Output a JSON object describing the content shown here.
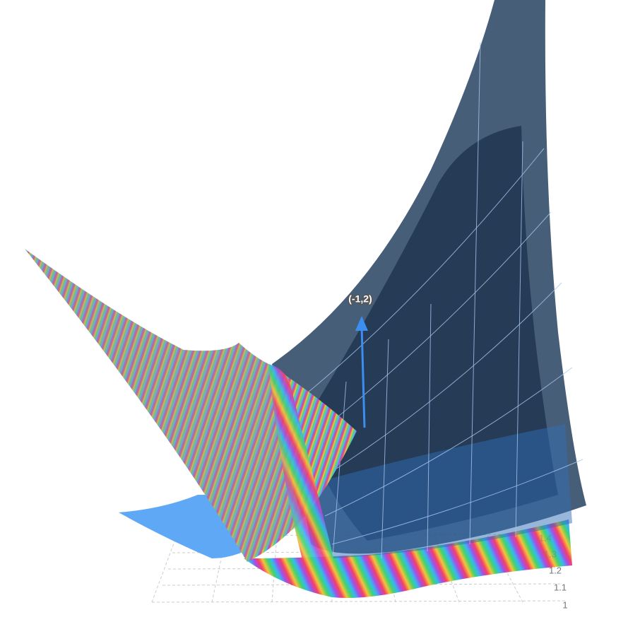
{
  "point_label": "(-1,2)",
  "axis_ticks": [
    "1",
    "1.1",
    "1.2",
    "1.3",
    "1.4"
  ]
}
